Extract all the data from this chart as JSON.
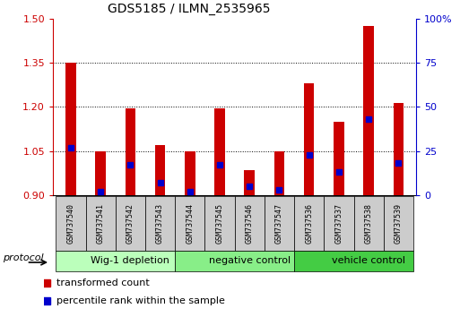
{
  "title": "GDS5185 / ILMN_2535965",
  "samples": [
    "GSM737540",
    "GSM737541",
    "GSM737542",
    "GSM737543",
    "GSM737544",
    "GSM737545",
    "GSM737546",
    "GSM737547",
    "GSM737536",
    "GSM737537",
    "GSM737538",
    "GSM737539"
  ],
  "red_values": [
    1.35,
    1.05,
    1.195,
    1.07,
    1.05,
    1.195,
    0.985,
    1.05,
    1.28,
    1.15,
    1.475,
    1.215
  ],
  "blue_values_pct": [
    27,
    2,
    17,
    7,
    2,
    17,
    5,
    3,
    23,
    13,
    43,
    18
  ],
  "ylim_left": [
    0.9,
    1.5
  ],
  "ylim_right": [
    0,
    100
  ],
  "yticks_left": [
    0.9,
    1.05,
    1.2,
    1.35,
    1.5
  ],
  "yticks_right": [
    0,
    25,
    50,
    75,
    100
  ],
  "ytick_labels_right": [
    "0",
    "25",
    "50",
    "75",
    "100%"
  ],
  "groups": [
    {
      "label": "Wig-1 depletion",
      "start": 0,
      "end": 4
    },
    {
      "label": "negative control",
      "start": 4,
      "end": 8
    },
    {
      "label": "vehicle control",
      "start": 8,
      "end": 12
    }
  ],
  "group_colors": [
    "#bbffbb",
    "#88ee88",
    "#44cc44"
  ],
  "red_color": "#cc0000",
  "blue_color": "#0000cc",
  "bar_width": 0.35,
  "baseline": 0.9,
  "legend_red": "transformed count",
  "legend_blue": "percentile rank within the sample",
  "protocol_label": "protocol",
  "sample_box_color": "#cccccc",
  "grid_color": "black"
}
